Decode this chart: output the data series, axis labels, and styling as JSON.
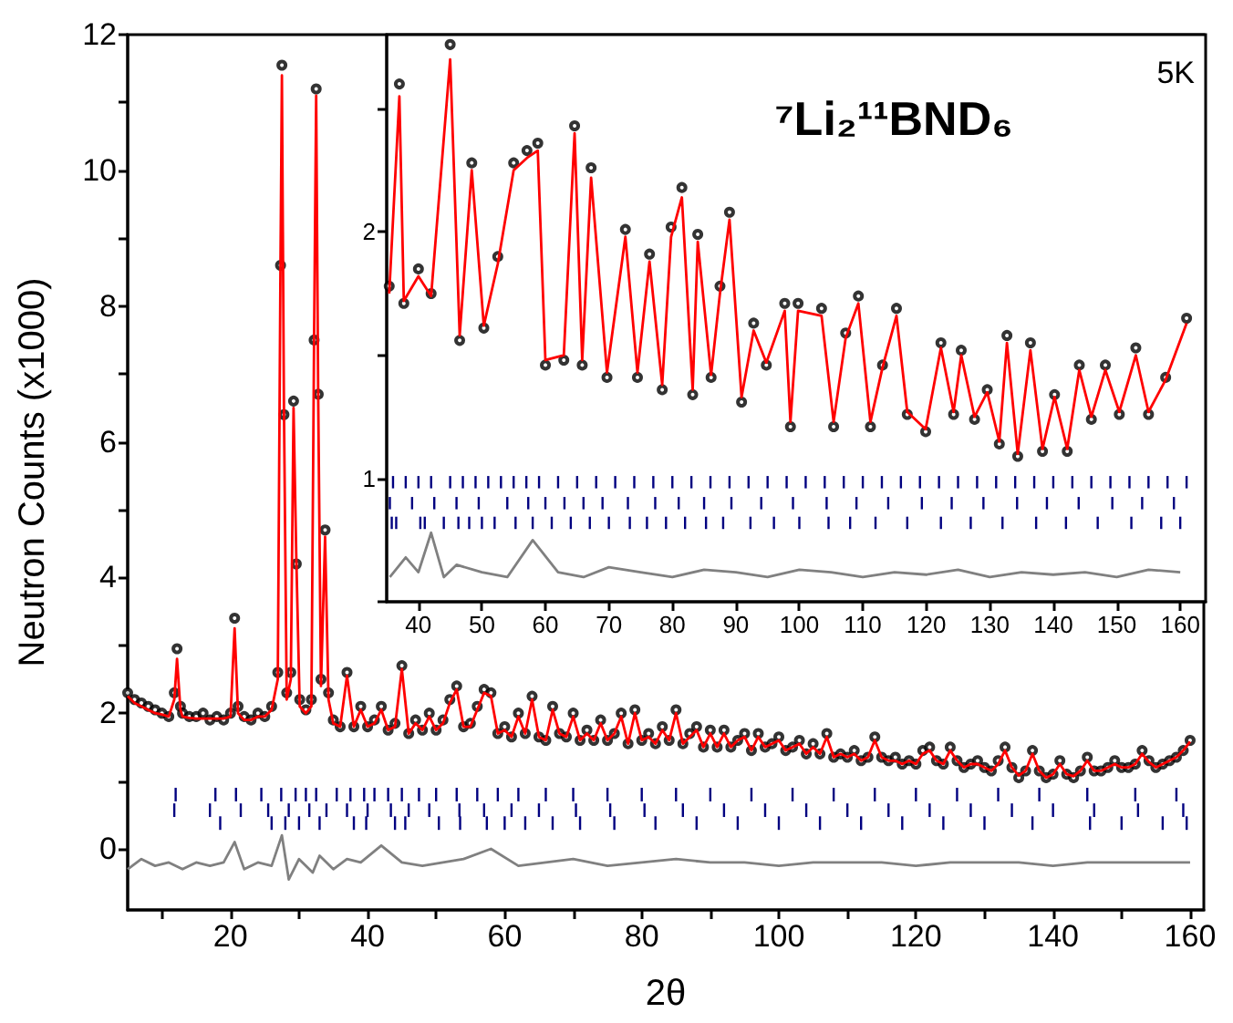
{
  "chart_data": [
    {
      "type": "scatter",
      "xlabel": "2θ",
      "ylabel": "Neutron Counts (x1000)",
      "xlim": [
        5,
        162
      ],
      "ylim": [
        -0.9,
        12
      ],
      "xticks": [
        {
          "value": 10,
          "label": null
        },
        20,
        {
          "value": 30,
          "label": null
        },
        40,
        {
          "value": 50,
          "label": null
        },
        60,
        {
          "value": 70,
          "label": null
        },
        80,
        {
          "value": 90,
          "label": null
        },
        100,
        {
          "value": 110,
          "label": null
        },
        120,
        {
          "value": 130,
          "label": null
        },
        140,
        {
          "value": 150,
          "label": null
        },
        160
      ],
      "yticks": [
        0,
        {
          "value": 1,
          "label": null
        },
        2,
        {
          "value": 3,
          "label": null
        },
        4,
        {
          "value": 5,
          "label": null
        },
        6,
        {
          "value": 7,
          "label": null
        },
        8,
        {
          "value": 9,
          "label": null
        },
        10,
        {
          "value": 11,
          "label": null
        },
        12
      ],
      "grid": false,
      "series": [
        {
          "marker": "circle",
          "color": "#000000",
          "x": [
            5,
            6,
            7,
            8,
            9,
            10,
            11,
            11.8,
            12.2,
            12.7,
            13,
            14,
            15,
            16,
            17,
            18,
            19,
            20,
            20.6,
            21.1,
            22,
            23,
            24,
            25,
            26,
            26.9,
            27.3,
            27.5,
            27.8,
            28.2,
            28.8,
            29.2,
            29.6,
            30.1,
            31,
            31.8,
            32.2,
            32.5,
            32.8,
            33.2,
            33.8,
            34.3,
            35,
            36,
            37,
            38,
            39,
            40,
            41,
            42,
            43,
            44,
            45,
            46,
            47,
            48,
            49,
            50,
            51,
            52,
            53,
            54,
            55,
            56,
            57,
            58,
            59,
            60,
            61,
            62,
            63,
            64,
            65,
            66,
            67,
            68,
            69,
            70,
            71,
            72,
            73,
            74,
            75,
            76,
            77,
            78,
            79,
            80,
            81,
            82,
            83,
            84,
            85,
            86,
            87,
            88,
            89,
            90,
            91,
            92,
            93,
            94,
            95,
            96,
            97,
            98,
            99,
            100,
            101,
            102,
            103,
            104,
            105,
            106,
            107,
            108,
            109,
            110,
            111,
            112,
            113,
            114,
            115,
            116,
            117,
            118,
            119,
            120,
            121,
            122,
            123,
            124,
            125,
            126,
            127,
            128,
            129,
            130,
            131,
            132,
            133,
            134,
            135,
            136,
            137,
            138,
            139,
            140,
            141,
            142,
            143,
            144,
            145,
            146,
            147,
            148,
            149,
            150,
            151,
            152,
            153,
            154,
            155,
            156,
            157,
            158,
            159,
            160
          ],
          "values": [
            2.3,
            2.2,
            2.15,
            2.1,
            2.05,
            2.0,
            1.95,
            2.3,
            2.95,
            2.1,
            2.0,
            1.95,
            1.95,
            2.0,
            1.9,
            1.95,
            1.9,
            2.0,
            3.4,
            2.1,
            1.95,
            1.9,
            2.0,
            1.95,
            2.1,
            2.6,
            8.6,
            11.55,
            6.4,
            2.3,
            2.6,
            6.6,
            4.2,
            2.2,
            2.05,
            2.2,
            7.5,
            11.2,
            6.7,
            2.5,
            4.7,
            2.3,
            1.9,
            1.8,
            2.6,
            1.8,
            2.1,
            1.8,
            1.9,
            2.1,
            1.75,
            1.85,
            2.7,
            1.7,
            1.9,
            1.75,
            2.0,
            1.75,
            1.9,
            2.2,
            2.4,
            1.8,
            1.85,
            2.1,
            2.35,
            2.3,
            1.7,
            1.8,
            1.65,
            2.0,
            1.7,
            2.25,
            1.65,
            1.6,
            2.1,
            1.7,
            1.65,
            2.0,
            1.6,
            1.75,
            1.6,
            1.9,
            1.6,
            1.7,
            2.0,
            1.55,
            2.05,
            1.6,
            1.7,
            1.55,
            1.8,
            1.6,
            2.05,
            1.55,
            1.7,
            1.8,
            1.5,
            1.75,
            1.5,
            1.75,
            1.5,
            1.6,
            1.7,
            1.45,
            1.7,
            1.5,
            1.55,
            1.65,
            1.45,
            1.5,
            1.6,
            1.4,
            1.55,
            1.4,
            1.7,
            1.35,
            1.4,
            1.35,
            1.45,
            1.3,
            1.35,
            1.65,
            1.35,
            1.3,
            1.35,
            1.25,
            1.3,
            1.25,
            1.45,
            1.5,
            1.3,
            1.25,
            1.5,
            1.3,
            1.2,
            1.25,
            1.3,
            1.2,
            1.15,
            1.3,
            1.5,
            1.2,
            1.05,
            1.15,
            1.45,
            1.15,
            1.05,
            1.1,
            1.3,
            1.1,
            1.05,
            1.15,
            1.35,
            1.15,
            1.15,
            1.2,
            1.3,
            1.2,
            1.2,
            1.25,
            1.45,
            1.3,
            1.2,
            1.25,
            1.3,
            1.35,
            1.45,
            1.6
          ]
        },
        {
          "type": "line",
          "marker": "none",
          "color": "#ff0000",
          "x": [
            5,
            6,
            7,
            8,
            9,
            10,
            11,
            11.8,
            12.2,
            12.7,
            13,
            14,
            15,
            16,
            17,
            18,
            19,
            20,
            20.6,
            21.1,
            22,
            23,
            24,
            25,
            26,
            26.9,
            27.3,
            27.5,
            27.8,
            28.2,
            28.8,
            29.2,
            29.6,
            30.1,
            31,
            31.8,
            32.2,
            32.5,
            32.8,
            33.2,
            33.8,
            34.3,
            35,
            36,
            37,
            38,
            39,
            40,
            41,
            42,
            43,
            44,
            45,
            46,
            47,
            48,
            49,
            50,
            51,
            52,
            53,
            54,
            55,
            56,
            57,
            58,
            59,
            60,
            61,
            62,
            63,
            64,
            65,
            66,
            67,
            68,
            69,
            70,
            71,
            72,
            73,
            74,
            75,
            76,
            77,
            78,
            79,
            80,
            81,
            82,
            83,
            84,
            85,
            86,
            87,
            88,
            89,
            90,
            91,
            92,
            93,
            94,
            95,
            96,
            97,
            98,
            99,
            100,
            101,
            102,
            103,
            104,
            105,
            106,
            107,
            108,
            109,
            110,
            111,
            112,
            113,
            114,
            115,
            116,
            117,
            118,
            119,
            120,
            121,
            122,
            123,
            124,
            125,
            126,
            127,
            128,
            129,
            130,
            131,
            132,
            133,
            134,
            135,
            136,
            137,
            138,
            139,
            140,
            141,
            142,
            143,
            144,
            145,
            146,
            147,
            148,
            149,
            150,
            151,
            152,
            153,
            154,
            155,
            156,
            157,
            158,
            159,
            160
          ],
          "values": [
            2.25,
            2.15,
            2.1,
            2.05,
            2.0,
            1.98,
            1.95,
            2.2,
            2.8,
            2.05,
            1.95,
            1.93,
            1.92,
            1.92,
            1.92,
            1.92,
            1.92,
            1.95,
            3.25,
            2.0,
            1.9,
            1.9,
            1.95,
            1.95,
            2.05,
            2.5,
            8.7,
            11.4,
            6.5,
            2.2,
            2.5,
            6.5,
            4.3,
            2.1,
            2.0,
            2.1,
            7.6,
            11.1,
            6.6,
            2.4,
            4.6,
            2.2,
            1.85,
            1.8,
            2.55,
            1.8,
            2.05,
            1.8,
            1.85,
            2.05,
            1.75,
            1.8,
            2.65,
            1.7,
            1.85,
            1.75,
            1.95,
            1.75,
            1.85,
            2.15,
            2.35,
            1.8,
            1.8,
            2.05,
            2.3,
            2.25,
            1.7,
            1.75,
            1.65,
            1.95,
            1.7,
            2.2,
            1.65,
            1.6,
            2.05,
            1.7,
            1.65,
            1.95,
            1.6,
            1.7,
            1.6,
            1.85,
            1.6,
            1.7,
            1.95,
            1.55,
            2.0,
            1.6,
            1.65,
            1.55,
            1.75,
            1.6,
            2.0,
            1.55,
            1.65,
            1.75,
            1.5,
            1.7,
            1.5,
            1.7,
            1.5,
            1.6,
            1.65,
            1.45,
            1.65,
            1.5,
            1.55,
            1.6,
            1.45,
            1.5,
            1.55,
            1.4,
            1.5,
            1.4,
            1.65,
            1.35,
            1.4,
            1.35,
            1.4,
            1.3,
            1.35,
            1.6,
            1.35,
            1.3,
            1.3,
            1.25,
            1.3,
            1.25,
            1.4,
            1.45,
            1.3,
            1.25,
            1.45,
            1.3,
            1.2,
            1.25,
            1.25,
            1.2,
            1.15,
            1.25,
            1.45,
            1.2,
            1.08,
            1.15,
            1.4,
            1.15,
            1.05,
            1.1,
            1.25,
            1.1,
            1.07,
            1.15,
            1.3,
            1.15,
            1.15,
            1.2,
            1.25,
            1.2,
            1.2,
            1.25,
            1.4,
            1.28,
            1.2,
            1.25,
            1.3,
            1.35,
            1.45,
            1.58
          ]
        },
        {
          "type": "line",
          "marker": "none",
          "color": "#808080",
          "x": [
            5,
            7,
            9,
            11,
            13,
            15,
            17,
            19,
            20.6,
            22,
            24,
            26,
            27.5,
            28.5,
            30,
            32,
            33,
            35,
            37,
            39,
            42,
            45,
            48,
            51,
            54,
            58,
            62,
            66,
            70,
            75,
            80,
            85,
            90,
            95,
            100,
            105,
            110,
            115,
            120,
            125,
            130,
            135,
            140,
            145,
            150,
            155,
            160
          ],
          "values": [
            -0.3,
            -0.15,
            -0.25,
            -0.2,
            -0.3,
            -0.2,
            -0.25,
            -0.2,
            0.1,
            -0.3,
            -0.2,
            -0.25,
            0.2,
            -0.45,
            -0.15,
            -0.35,
            -0.1,
            -0.3,
            -0.15,
            -0.2,
            0.05,
            -0.2,
            -0.25,
            -0.2,
            -0.15,
            0.0,
            -0.25,
            -0.2,
            -0.15,
            -0.25,
            -0.2,
            -0.15,
            -0.2,
            -0.2,
            -0.25,
            -0.2,
            -0.2,
            -0.2,
            -0.25,
            -0.2,
            -0.2,
            -0.2,
            -0.25,
            -0.2,
            -0.2,
            -0.2,
            -0.2
          ]
        },
        {
          "type": "bar",
          "color": "#000080",
          "x": [
            11.8,
            12,
            17,
            17.8,
            18.5,
            20.8,
            21.5,
            24.5,
            25.5,
            26,
            27.4,
            28,
            28.5,
            29.5,
            30,
            31,
            31.5,
            32.5,
            33,
            34,
            35.5,
            37,
            37.5,
            38,
            39.5,
            39.8,
            40,
            41,
            43,
            43.4,
            44,
            45,
            45.5,
            46,
            47.5,
            49,
            50,
            50.4,
            53,
            53.4,
            53.5,
            56,
            57,
            57.4,
            59,
            60,
            61,
            62,
            63,
            65,
            66,
            67,
            70,
            70.4,
            71,
            75,
            75.4,
            76,
            80,
            80.4,
            82,
            85,
            86,
            88,
            90,
            92,
            94,
            96,
            98,
            100,
            102,
            104,
            106,
            108,
            110,
            112,
            114,
            116,
            118,
            120,
            122,
            124,
            126,
            128,
            130,
            132,
            134,
            137,
            138,
            140,
            145,
            145.4,
            146,
            150,
            152,
            152.4,
            156,
            158,
            159,
            159.5
          ],
          "base": [
            0.47,
            0.7,
            0.47,
            0.7,
            0.28,
            0.7,
            0.47,
            0.7,
            0.47,
            0.28,
            0.7,
            0.28,
            0.47,
            0.7,
            0.28,
            0.7,
            0.47,
            0.7,
            0.28,
            0.47,
            0.7,
            0.47,
            0.7,
            0.28,
            0.7,
            0.28,
            0.47,
            0.7,
            0.7,
            0.47,
            0.28,
            0.7,
            0.28,
            0.47,
            0.7,
            0.47,
            0.7,
            0.28,
            0.7,
            0.47,
            0.28,
            0.7,
            0.47,
            0.28,
            0.7,
            0.28,
            0.47,
            0.7,
            0.28,
            0.47,
            0.7,
            0.28,
            0.7,
            0.47,
            0.28,
            0.7,
            0.47,
            0.28,
            0.7,
            0.47,
            0.28,
            0.7,
            0.47,
            0.28,
            0.7,
            0.47,
            0.28,
            0.7,
            0.47,
            0.28,
            0.7,
            0.47,
            0.28,
            0.7,
            0.47,
            0.28,
            0.7,
            0.47,
            0.28,
            0.7,
            0.47,
            0.28,
            0.7,
            0.47,
            0.28,
            0.7,
            0.47,
            0.28,
            0.7,
            0.47,
            0.7,
            0.28,
            0.47,
            0.28,
            0.7,
            0.47,
            0.28,
            0.7,
            0.47,
            0.28
          ],
          "values": [
            0.2,
            0.2,
            0.2,
            0.2,
            0.2,
            0.2,
            0.2,
            0.2,
            0.2,
            0.2,
            0.2,
            0.2,
            0.2,
            0.2,
            0.2,
            0.2,
            0.2,
            0.2,
            0.2,
            0.2,
            0.2,
            0.2,
            0.2,
            0.2,
            0.2,
            0.2,
            0.2,
            0.2,
            0.2,
            0.2,
            0.2,
            0.2,
            0.2,
            0.2,
            0.2,
            0.2,
            0.2,
            0.2,
            0.2,
            0.2,
            0.2,
            0.2,
            0.2,
            0.2,
            0.2,
            0.2,
            0.2,
            0.2,
            0.2,
            0.2,
            0.2,
            0.2,
            0.2,
            0.2,
            0.2,
            0.2,
            0.2,
            0.2,
            0.2,
            0.2,
            0.2,
            0.2,
            0.2,
            0.2,
            0.2,
            0.2,
            0.2,
            0.2,
            0.2,
            0.2,
            0.2,
            0.2,
            0.2,
            0.2,
            0.2,
            0.2,
            0.2,
            0.2,
            0.2,
            0.2,
            0.2,
            0.2,
            0.2,
            0.2,
            0.2,
            0.2,
            0.2,
            0.2,
            0.2,
            0.2,
            0.2,
            0.2,
            0.2,
            0.2,
            0.2,
            0.2,
            0.2,
            0.2,
            0.2,
            0.2
          ]
        }
      ]
    },
    {
      "type": "scatter",
      "annotations": [
        "⁷Li₂¹¹BND₆",
        "5K"
      ],
      "xlim": [
        35,
        164
      ],
      "ylim": [
        0.5,
        2.8
      ],
      "xticks": [
        40,
        50,
        60,
        70,
        80,
        90,
        100,
        110,
        120,
        130,
        140,
        150,
        160
      ],
      "yticks": [
        {
          "value": 0.5,
          "label": null
        },
        1,
        {
          "value": 1.5,
          "label": null
        },
        2,
        {
          "value": 2.5,
          "label": null
        }
      ],
      "grid": false,
      "series": [
        {
          "marker": "circle",
          "color": "#000000",
          "x": [
            35.4,
            37.0,
            37.7,
            40,
            42,
            45.0,
            46.5,
            48.4,
            50.3,
            52.5,
            55.0,
            57.1,
            58.8,
            60.0,
            62.9,
            64.6,
            65.8,
            67.2,
            69.7,
            72.6,
            74.5,
            76.4,
            78.4,
            79.8,
            81.5,
            83.2,
            84.0,
            86.1,
            87.5,
            89.0,
            90.9,
            92.8,
            94.8,
            97.7,
            98.6,
            99.8,
            103.5,
            105.4,
            107.3,
            109.3,
            111.2,
            113.1,
            115.3,
            117.0,
            119.9,
            122.3,
            124.3,
            125.5,
            127.6,
            129.6,
            131.5,
            132.7,
            134.4,
            136.4,
            138.3,
            140.2,
            142.2,
            144.1,
            146.0,
            148.2,
            150.4,
            153.0,
            155.0,
            157.7,
            161
          ],
          "values": [
            1.78,
            2.6,
            1.71,
            1.85,
            1.75,
            2.76,
            1.56,
            2.28,
            1.61,
            1.9,
            2.28,
            2.33,
            2.36,
            1.46,
            1.48,
            2.43,
            1.46,
            2.26,
            1.41,
            2.01,
            1.41,
            1.91,
            1.36,
            2.02,
            2.18,
            1.34,
            1.99,
            1.41,
            1.78,
            2.08,
            1.31,
            1.63,
            1.46,
            1.71,
            1.21,
            1.71,
            1.69,
            1.21,
            1.59,
            1.74,
            1.21,
            1.46,
            1.69,
            1.26,
            1.19,
            1.55,
            1.26,
            1.52,
            1.24,
            1.36,
            1.14,
            1.58,
            1.09,
            1.55,
            1.11,
            1.34,
            1.11,
            1.46,
            1.24,
            1.46,
            1.26,
            1.53,
            1.26,
            1.41,
            1.65
          ]
        },
        {
          "type": "line",
          "marker": "none",
          "color": "#ff0000",
          "x": [
            35.4,
            37.0,
            37.7,
            40,
            42,
            45.0,
            46.5,
            48.4,
            50.3,
            52.5,
            55.0,
            57.1,
            58.8,
            60.0,
            62.9,
            64.6,
            65.8,
            67.2,
            69.7,
            72.6,
            74.5,
            76.4,
            78.4,
            79.8,
            81.5,
            83.2,
            84.0,
            86.1,
            87.5,
            89.0,
            90.9,
            92.8,
            94.8,
            97.7,
            98.6,
            99.8,
            103.5,
            105.4,
            107.3,
            109.3,
            111.2,
            113.1,
            115.3,
            117.0,
            119.9,
            122.3,
            124.3,
            125.5,
            127.6,
            129.6,
            131.5,
            132.7,
            134.4,
            136.4,
            138.3,
            140.2,
            142.2,
            144.1,
            146.0,
            148.2,
            150.4,
            153.0,
            155.0,
            157.7,
            161
          ],
          "values": [
            1.75,
            2.55,
            1.72,
            1.82,
            1.74,
            2.7,
            1.58,
            2.25,
            1.62,
            1.87,
            2.25,
            2.3,
            2.33,
            1.48,
            1.5,
            2.4,
            1.48,
            2.22,
            1.43,
            1.98,
            1.43,
            1.88,
            1.38,
            1.98,
            2.14,
            1.36,
            1.96,
            1.42,
            1.75,
            2.05,
            1.33,
            1.6,
            1.47,
            1.68,
            1.23,
            1.68,
            1.66,
            1.23,
            1.57,
            1.71,
            1.23,
            1.45,
            1.66,
            1.27,
            1.2,
            1.53,
            1.27,
            1.5,
            1.25,
            1.35,
            1.15,
            1.55,
            1.1,
            1.52,
            1.12,
            1.33,
            1.12,
            1.44,
            1.25,
            1.44,
            1.27,
            1.5,
            1.27,
            1.4,
            1.63
          ]
        },
        {
          "type": "line",
          "marker": "none",
          "color": "#808080",
          "x": [
            35.5,
            38,
            40,
            42,
            44,
            46,
            50,
            54,
            58,
            62,
            66,
            70,
            75,
            80,
            85,
            90,
            95,
            100,
            105,
            110,
            115,
            120,
            125,
            130,
            135,
            140,
            145,
            150,
            155,
            160
          ],
          "values": [
            0.6,
            0.68,
            0.62,
            0.78,
            0.6,
            0.65,
            0.62,
            0.6,
            0.75,
            0.62,
            0.6,
            0.64,
            0.62,
            0.6,
            0.63,
            0.62,
            0.6,
            0.63,
            0.62,
            0.6,
            0.62,
            0.61,
            0.63,
            0.6,
            0.62,
            0.61,
            0.62,
            0.6,
            0.63,
            0.62
          ]
        },
        {
          "type": "bar",
          "color": "#000080",
          "x": [
            35.5,
            35.8,
            36,
            36.5,
            38,
            39,
            40,
            40.3,
            41,
            42,
            42.5,
            44,
            45,
            46,
            46.3,
            47,
            48,
            49,
            49.5,
            50,
            51,
            52,
            53,
            54,
            55,
            55.3,
            57,
            57.3,
            58,
            59,
            60,
            61,
            62,
            63,
            64,
            65,
            66,
            67,
            68,
            69,
            70,
            71,
            73,
            73.3,
            74,
            76,
            77,
            77.3,
            79,
            80,
            81,
            82,
            83,
            85,
            85.3,
            86,
            88,
            89,
            89.3,
            92,
            92.3,
            94,
            95,
            96,
            98,
            99,
            100,
            101,
            104,
            104.3,
            104.6,
            107,
            108,
            109,
            110,
            112,
            113,
            114,
            116,
            117,
            119,
            119.3,
            122,
            122.3,
            124,
            125,
            127,
            128,
            129,
            131,
            132,
            134,
            134.3,
            137,
            137.3,
            139,
            140,
            142,
            143,
            144,
            146,
            147,
            149,
            149.3,
            152,
            152.3,
            154,
            155,
            157,
            158,
            159,
            160,
            161
          ],
          "base": [
            0.875,
            0.795,
            0.96,
            0.795,
            0.96,
            0.875,
            0.96,
            0.795,
            0.795,
            0.96,
            0.875,
            0.795,
            0.96,
            0.875,
            0.795,
            0.96,
            0.795,
            0.96,
            0.875,
            0.795,
            0.96,
            0.795,
            0.96,
            0.875,
            0.96,
            0.795,
            0.96,
            0.875,
            0.795,
            0.96,
            0.875,
            0.795,
            0.96,
            0.875,
            0.795,
            0.96,
            0.875,
            0.795,
            0.96,
            0.875,
            0.795,
            0.96,
            0.875,
            0.795,
            0.96,
            0.795,
            0.96,
            0.875,
            0.795,
            0.96,
            0.875,
            0.795,
            0.96,
            0.875,
            0.795,
            0.96,
            0.795,
            0.96,
            0.875,
            0.96,
            0.795,
            0.875,
            0.96,
            0.795,
            0.96,
            0.875,
            0.795,
            0.96,
            0.96,
            0.875,
            0.795,
            0.96,
            0.795,
            0.875,
            0.96,
            0.795,
            0.96,
            0.875,
            0.96,
            0.795,
            0.96,
            0.875,
            0.96,
            0.795,
            0.875,
            0.96,
            0.795,
            0.96,
            0.875,
            0.96,
            0.795,
            0.96,
            0.875,
            0.96,
            0.795,
            0.875,
            0.96,
            0.795,
            0.96,
            0.875,
            0.96,
            0.795,
            0.96,
            0.875,
            0.96,
            0.795,
            0.875,
            0.96,
            0.795,
            0.96,
            0.875,
            0.795,
            0.96
          ],
          "values": [
            0.05,
            0.05,
            0.05,
            0.05,
            0.05,
            0.05,
            0.05,
            0.05,
            0.05,
            0.05,
            0.05,
            0.05,
            0.05,
            0.05,
            0.05,
            0.05,
            0.05,
            0.05,
            0.05,
            0.05,
            0.05,
            0.05,
            0.05,
            0.05,
            0.05,
            0.05,
            0.05,
            0.05,
            0.05,
            0.05,
            0.05,
            0.05,
            0.05,
            0.05,
            0.05,
            0.05,
            0.05,
            0.05,
            0.05,
            0.05,
            0.05,
            0.05,
            0.05,
            0.05,
            0.05,
            0.05,
            0.05,
            0.05,
            0.05,
            0.05,
            0.05,
            0.05,
            0.05,
            0.05,
            0.05,
            0.05,
            0.05,
            0.05,
            0.05,
            0.05,
            0.05,
            0.05,
            0.05,
            0.05,
            0.05,
            0.05,
            0.05,
            0.05,
            0.05,
            0.05,
            0.05,
            0.05,
            0.05,
            0.05,
            0.05,
            0.05,
            0.05,
            0.05,
            0.05,
            0.05,
            0.05,
            0.05,
            0.05,
            0.05,
            0.05,
            0.05,
            0.05,
            0.05,
            0.05,
            0.05,
            0.05,
            0.05,
            0.05,
            0.05,
            0.05,
            0.05,
            0.05,
            0.05,
            0.05,
            0.05,
            0.05,
            0.05,
            0.05,
            0.05,
            0.05,
            0.05,
            0.05,
            0.05,
            0.05,
            0.05,
            0.05,
            0.05,
            0.05
          ]
        }
      ]
    }
  ]
}
